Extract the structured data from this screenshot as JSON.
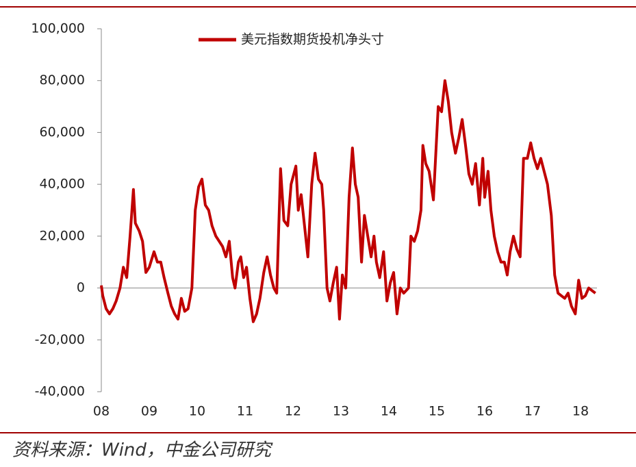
{
  "chart_data": {
    "type": "line",
    "x": [
      8.0,
      8.03,
      8.1,
      8.17,
      8.24,
      8.31,
      8.39,
      8.46,
      8.53,
      8.6,
      8.67,
      8.71,
      8.79,
      8.86,
      8.93,
      9.0,
      9.1,
      9.17,
      9.24,
      9.31,
      9.39,
      9.46,
      9.53,
      9.6,
      9.67,
      9.74,
      9.81,
      9.89,
      9.96,
      10.03,
      10.1,
      10.17,
      10.24,
      10.31,
      10.39,
      10.46,
      10.53,
      10.6,
      10.67,
      10.74,
      10.79,
      10.86,
      10.91,
      10.97,
      11.03,
      11.1,
      11.17,
      11.24,
      11.31,
      11.39,
      11.46,
      11.53,
      11.6,
      11.66,
      11.74,
      11.81,
      11.89,
      11.96,
      12.06,
      12.11,
      12.17,
      12.24,
      12.31,
      12.39,
      12.46,
      12.53,
      12.6,
      12.64,
      12.71,
      12.77,
      12.84,
      12.91,
      12.97,
      13.03,
      13.1,
      13.17,
      13.24,
      13.3,
      13.36,
      13.43,
      13.49,
      13.56,
      13.63,
      13.69,
      13.74,
      13.81,
      13.89,
      13.96,
      14.03,
      14.1,
      14.17,
      14.24,
      14.31,
      14.41,
      14.46,
      14.53,
      14.6,
      14.67,
      14.71,
      14.77,
      14.84,
      14.93,
      15.03,
      15.1,
      15.17,
      15.24,
      15.31,
      15.39,
      15.46,
      15.53,
      15.6,
      15.67,
      15.74,
      15.81,
      15.89,
      15.96,
      16.0,
      16.07,
      16.13,
      16.2,
      16.27,
      16.34,
      16.41,
      16.47,
      16.53,
      16.6,
      16.67,
      16.74,
      16.81,
      16.89,
      16.96,
      17.03,
      17.1,
      17.17,
      17.24,
      17.31,
      17.39,
      17.46,
      17.53,
      17.6,
      17.67,
      17.74,
      17.81,
      17.89,
      17.96,
      18.03,
      18.1,
      18.17,
      18.24,
      18.31
    ],
    "series": [
      {
        "name": "美元指数期货投机净头寸",
        "color": "#c00000",
        "values": [
          1000,
          -3000,
          -8000,
          -10000,
          -8000,
          -5000,
          0,
          8000,
          4000,
          20000,
          38000,
          25000,
          22000,
          18000,
          6000,
          8000,
          14000,
          10000,
          10000,
          4000,
          -2000,
          -7000,
          -10000,
          -12000,
          -4000,
          -9000,
          -8000,
          0,
          30000,
          39000,
          42000,
          32000,
          30000,
          24000,
          20000,
          18000,
          16000,
          12000,
          18000,
          4000,
          0,
          10000,
          12000,
          4000,
          8000,
          -4000,
          -13000,
          -10000,
          -4000,
          6000,
          12000,
          5000,
          0,
          -2000,
          46000,
          26000,
          24000,
          40000,
          47000,
          30000,
          36000,
          24000,
          12000,
          40000,
          52000,
          42000,
          40000,
          30000,
          0,
          -5000,
          2000,
          8000,
          -12000,
          5000,
          0,
          35000,
          54000,
          40000,
          35000,
          10000,
          28000,
          20000,
          12000,
          20000,
          10000,
          4000,
          14000,
          -5000,
          2000,
          6000,
          -10000,
          0,
          -2000,
          0,
          20000,
          18000,
          22000,
          30000,
          55000,
          48000,
          45000,
          34000,
          70000,
          68000,
          80000,
          72000,
          60000,
          52000,
          58000,
          65000,
          55000,
          44000,
          40000,
          48000,
          32000,
          50000,
          35000,
          45000,
          30000,
          20000,
          14000,
          10000,
          10000,
          5000,
          14000,
          20000,
          15000,
          12000,
          50000,
          50000,
          56000,
          50000,
          46000,
          50000,
          45000,
          40000,
          28000,
          5000,
          -2000,
          -3000,
          -4000,
          -2000,
          -7000,
          -10000,
          3000,
          -4000,
          -3000,
          0,
          -1000,
          -2000
        ]
      }
    ],
    "xlim": [
      8,
      18.45
    ],
    "xticks": [
      {
        "value": 8,
        "label": "08"
      },
      {
        "value": 9,
        "label": "09"
      },
      10,
      11,
      12,
      13,
      14,
      15,
      16,
      17,
      18
    ],
    "ylim": [
      -40000,
      100000
    ],
    "yticks": [
      {
        "value": -40000,
        "label": "-40,000"
      },
      {
        "value": -20000,
        "label": "-20,000"
      },
      0,
      {
        "value": 20000,
        "label": "20,000"
      },
      {
        "value": 40000,
        "label": "40,000"
      },
      {
        "value": 60000,
        "label": "60,000"
      },
      {
        "value": 80000,
        "label": "80,000"
      },
      {
        "value": 100000,
        "label": "100,000"
      }
    ]
  },
  "footer": {
    "source": "资料来源：Wind，中金公司研究"
  }
}
